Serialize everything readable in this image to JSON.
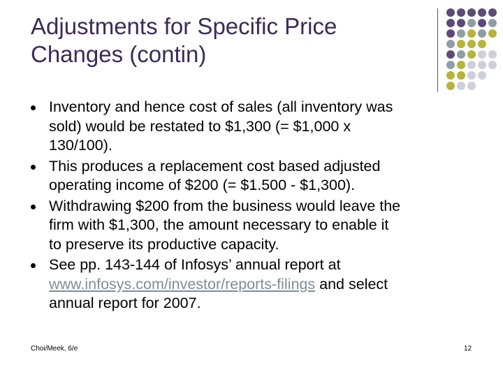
{
  "slide": {
    "title_line1": "Adjustments for Specific Price",
    "title_line2": "Changes (contin)",
    "bullets": [
      {
        "lines": [
          "Inventory and hence cost of sales (all inventory was",
          "sold) would be restated to $1,300 (= $1,000 x",
          "130/100)."
        ]
      },
      {
        "lines": [
          "This produces a replacement cost based  adjusted",
          "operating income of $200 (= $1.500 - $1,300)."
        ]
      },
      {
        "lines": [
          "Withdrawing $200 from the business would leave the",
          "firm with $1,300, the amount necessary to enable it",
          "to preserve its productive capacity."
        ]
      },
      {
        "line1": "See pp. 143-144 of Infosys’ annual report at",
        "link_text": "www.infosys.com/investor/reports-filings",
        "after_link": " and select",
        "line3": "annual report for 2007."
      }
    ],
    "footer_left": "Choi/Meek, 6/e",
    "footer_right": "12"
  },
  "colors": {
    "title": "#3b2a57",
    "purple": "#5d4b77",
    "slate": "#8f9ea4",
    "olive": "#b6b43a",
    "lavender": "#cfcfdc",
    "link": "#808d97"
  }
}
